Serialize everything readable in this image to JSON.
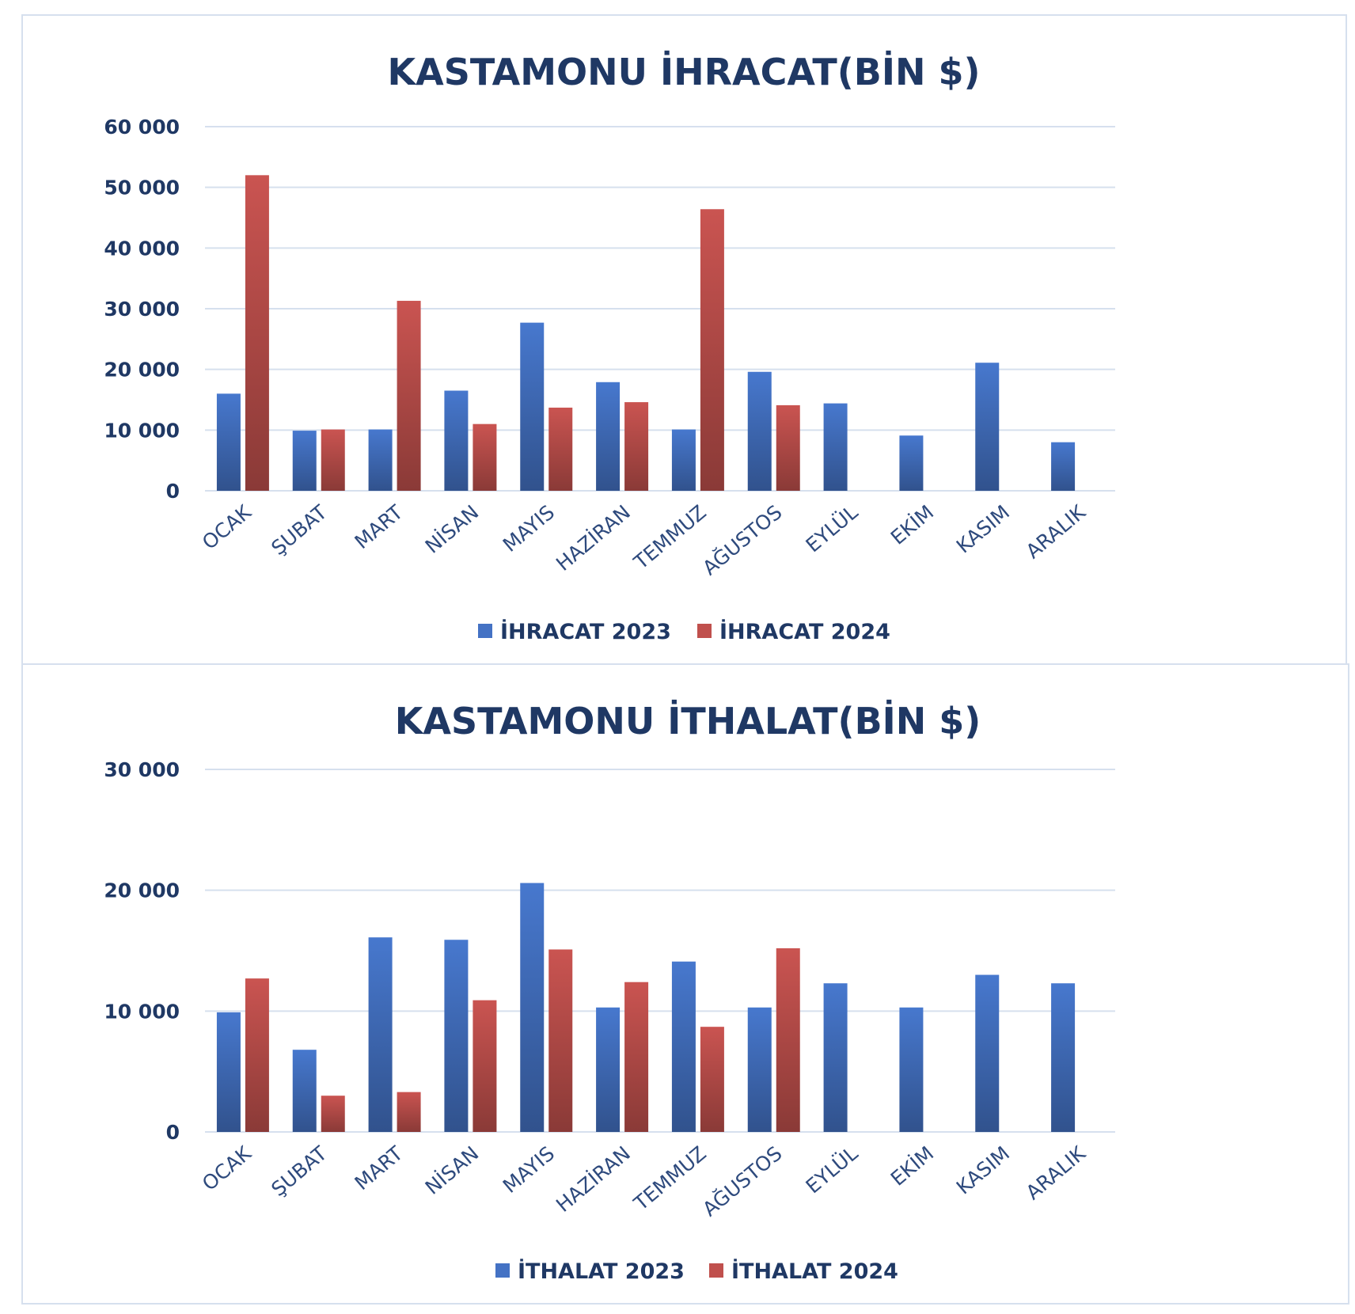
{
  "colors": {
    "s2023": "#4472c4",
    "s2024": "#c0504d",
    "text": "#1f3864",
    "grid": "#d6e0ee"
  },
  "chart_data": [
    {
      "type": "bar",
      "title": "KASTAMONU İHRACAT(BİN $)",
      "categories": [
        "OCAK",
        "ŞUBAT",
        "MART",
        "NİSAN",
        "MAYIS",
        "HAZİRAN",
        "TEMMUZ",
        "AĞUSTOS",
        "EYLÜL",
        "EKİM",
        "KASIM",
        "ARALIK"
      ],
      "series": [
        {
          "name": "İHRACAT 2023",
          "values": [
            16000,
            9900,
            10100,
            16500,
            27700,
            17900,
            10100,
            19600,
            14400,
            9100,
            21100,
            8000
          ]
        },
        {
          "name": "İHRACAT 2024",
          "values": [
            52000,
            10100,
            31300,
            11000,
            13700,
            14600,
            46400,
            14100,
            null,
            null,
            null,
            null
          ]
        }
      ],
      "yticks": [
        "0",
        "10 000",
        "20 000",
        "30 000",
        "40 000",
        "50 000",
        "60 000"
      ],
      "ylim": [
        0,
        60000
      ],
      "grid": true,
      "legend": "bottom"
    },
    {
      "type": "bar",
      "title": "KASTAMONU İTHALAT(BİN $)",
      "categories": [
        "OCAK",
        "ŞUBAT",
        "MART",
        "NİSAN",
        "MAYIS",
        "HAZİRAN",
        "TEMMUZ",
        "AĞUSTOS",
        "EYLÜL",
        "EKİM",
        "KASIM",
        "ARALIK"
      ],
      "series": [
        {
          "name": "İTHALAT 2023",
          "values": [
            9900,
            6800,
            16100,
            15900,
            20600,
            10300,
            14100,
            10300,
            12300,
            10300,
            13000,
            12300
          ]
        },
        {
          "name": "İTHALAT 2024",
          "values": [
            12700,
            3000,
            3300,
            10900,
            15100,
            12400,
            8700,
            15200,
            null,
            null,
            null,
            null
          ]
        }
      ],
      "yticks": [
        "0",
        "10 000",
        "20 000",
        "30 000"
      ],
      "ylim": [
        0,
        30000
      ],
      "grid": true,
      "legend": "bottom"
    }
  ]
}
